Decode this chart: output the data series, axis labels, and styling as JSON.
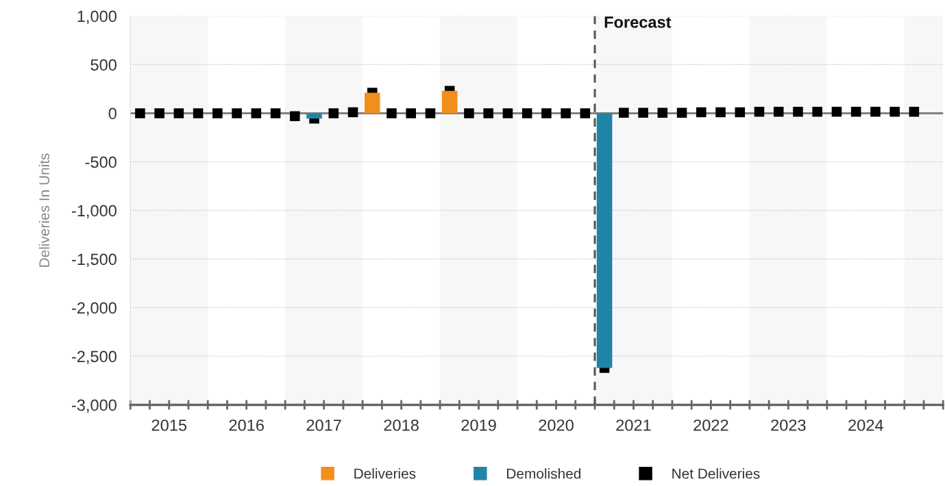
{
  "chart_data": {
    "type": "bar",
    "ylabel": "Deliveries In Units",
    "x": [
      2015.125,
      2015.375,
      2015.625,
      2015.875,
      2016.125,
      2016.375,
      2016.625,
      2016.875,
      2017.125,
      2017.375,
      2017.625,
      2017.875,
      2018.125,
      2018.375,
      2018.625,
      2018.875,
      2019.125,
      2019.375,
      2019.625,
      2019.875,
      2020.125,
      2020.375,
      2020.625,
      2020.875,
      2021.125,
      2021.375,
      2021.625,
      2021.875,
      2022.125,
      2022.375,
      2022.625,
      2022.875,
      2023.125,
      2023.375,
      2023.625,
      2023.875,
      2024.125,
      2024.375,
      2024.625,
      2024.875,
      2025.125
    ],
    "series": [
      {
        "name": "Deliveries",
        "color": "#f28e1c",
        "values": [
          null,
          null,
          null,
          null,
          null,
          null,
          null,
          null,
          null,
          null,
          null,
          null,
          210,
          null,
          null,
          null,
          230,
          null,
          null,
          null,
          null,
          null,
          null,
          null,
          null,
          null,
          null,
          null,
          null,
          null,
          null,
          null,
          null,
          null,
          null,
          null,
          null,
          null,
          null,
          null,
          null
        ]
      },
      {
        "name": "Demolished",
        "color": "#1f85a6",
        "values": [
          null,
          null,
          null,
          null,
          null,
          null,
          null,
          null,
          null,
          -55,
          null,
          null,
          null,
          null,
          null,
          null,
          null,
          null,
          null,
          null,
          null,
          null,
          null,
          null,
          -2620,
          null,
          null,
          null,
          null,
          null,
          null,
          null,
          null,
          null,
          null,
          null,
          null,
          null,
          null,
          null,
          null
        ]
      },
      {
        "name": "Net Deliveries",
        "type": "scatter",
        "marker": "square",
        "color": "#000000",
        "values": [
          0,
          0,
          0,
          0,
          0,
          0,
          0,
          0,
          -30,
          -55,
          0,
          10,
          210,
          0,
          0,
          0,
          230,
          0,
          0,
          0,
          0,
          0,
          0,
          0,
          -2620,
          5,
          5,
          5,
          5,
          10,
          10,
          10,
          15,
          15,
          15,
          15,
          15,
          15,
          15,
          15,
          15
        ]
      }
    ],
    "xlim": [
      2015,
      2025.5
    ],
    "xticks": [
      {
        "value": 2015,
        "label": null
      },
      {
        "value": 2015.25,
        "label": null
      },
      {
        "value": 2015.5,
        "label": "2015"
      },
      {
        "value": 2015.75,
        "label": null
      },
      {
        "value": 2016,
        "label": null
      },
      {
        "value": 2016.25,
        "label": null
      },
      {
        "value": 2016.5,
        "label": "2016"
      },
      {
        "value": 2016.75,
        "label": null
      },
      {
        "value": 2017,
        "label": null
      },
      {
        "value": 2017.25,
        "label": null
      },
      {
        "value": 2017.5,
        "label": "2017"
      },
      {
        "value": 2017.75,
        "label": null
      },
      {
        "value": 2018,
        "label": null
      },
      {
        "value": 2018.25,
        "label": null
      },
      {
        "value": 2018.5,
        "label": "2018"
      },
      {
        "value": 2018.75,
        "label": null
      },
      {
        "value": 2019,
        "label": null
      },
      {
        "value": 2019.25,
        "label": null
      },
      {
        "value": 2019.5,
        "label": "2019"
      },
      {
        "value": 2019.75,
        "label": null
      },
      {
        "value": 2020,
        "label": null
      },
      {
        "value": 2020.25,
        "label": null
      },
      {
        "value": 2020.5,
        "label": "2020"
      },
      {
        "value": 2020.75,
        "label": null
      },
      {
        "value": 2021,
        "label": null
      },
      {
        "value": 2021.25,
        "label": null
      },
      {
        "value": 2021.5,
        "label": "2021"
      },
      {
        "value": 2021.75,
        "label": null
      },
      {
        "value": 2022,
        "label": null
      },
      {
        "value": 2022.25,
        "label": null
      },
      {
        "value": 2022.5,
        "label": "2022"
      },
      {
        "value": 2022.75,
        "label": null
      },
      {
        "value": 2023,
        "label": null
      },
      {
        "value": 2023.25,
        "label": null
      },
      {
        "value": 2023.5,
        "label": "2023"
      },
      {
        "value": 2023.75,
        "label": null
      },
      {
        "value": 2024,
        "label": null
      },
      {
        "value": 2024.25,
        "label": null
      },
      {
        "value": 2024.5,
        "label": "2024"
      },
      {
        "value": 2024.75,
        "label": null
      },
      {
        "value": 2025,
        "label": null
      },
      {
        "value": 2025.25,
        "label": null
      },
      {
        "value": 2025.5,
        "label": null
      }
    ],
    "ylim": [
      -3000,
      1000
    ],
    "yticks": [
      {
        "value": 1000,
        "label": "1,000"
      },
      500,
      0,
      -500,
      {
        "value": -1000,
        "label": "-1,000"
      },
      {
        "value": -1500,
        "label": "-1,500"
      },
      {
        "value": -2000,
        "label": "-2,000"
      },
      {
        "value": -2500,
        "label": "-2,500"
      },
      {
        "value": -3000,
        "label": "-3,000"
      }
    ],
    "grid": "y",
    "legend": "bottom",
    "ref_lines": [
      {
        "axis": "y",
        "value": 0,
        "color": "#808080",
        "line_style": "solid"
      },
      {
        "axis": "x",
        "value": 2021,
        "label": "Forecast",
        "color": "#555555",
        "line_style": "dashed"
      }
    ],
    "bands": [
      {
        "axis": "x",
        "from": 2015,
        "to": 2016,
        "color": "#f7f7f7"
      },
      {
        "axis": "x",
        "from": 2017,
        "to": 2018,
        "color": "#f7f7f7"
      },
      {
        "axis": "x",
        "from": 2019,
        "to": 2020,
        "color": "#f7f7f7"
      },
      {
        "axis": "x",
        "from": 2021,
        "to": 2022,
        "color": "#f7f7f7"
      },
      {
        "axis": "x",
        "from": 2023,
        "to": 2024,
        "color": "#f7f7f7"
      },
      {
        "axis": "x",
        "from": 2025,
        "to": 2025.5,
        "color": "#f7f7f7"
      }
    ]
  }
}
